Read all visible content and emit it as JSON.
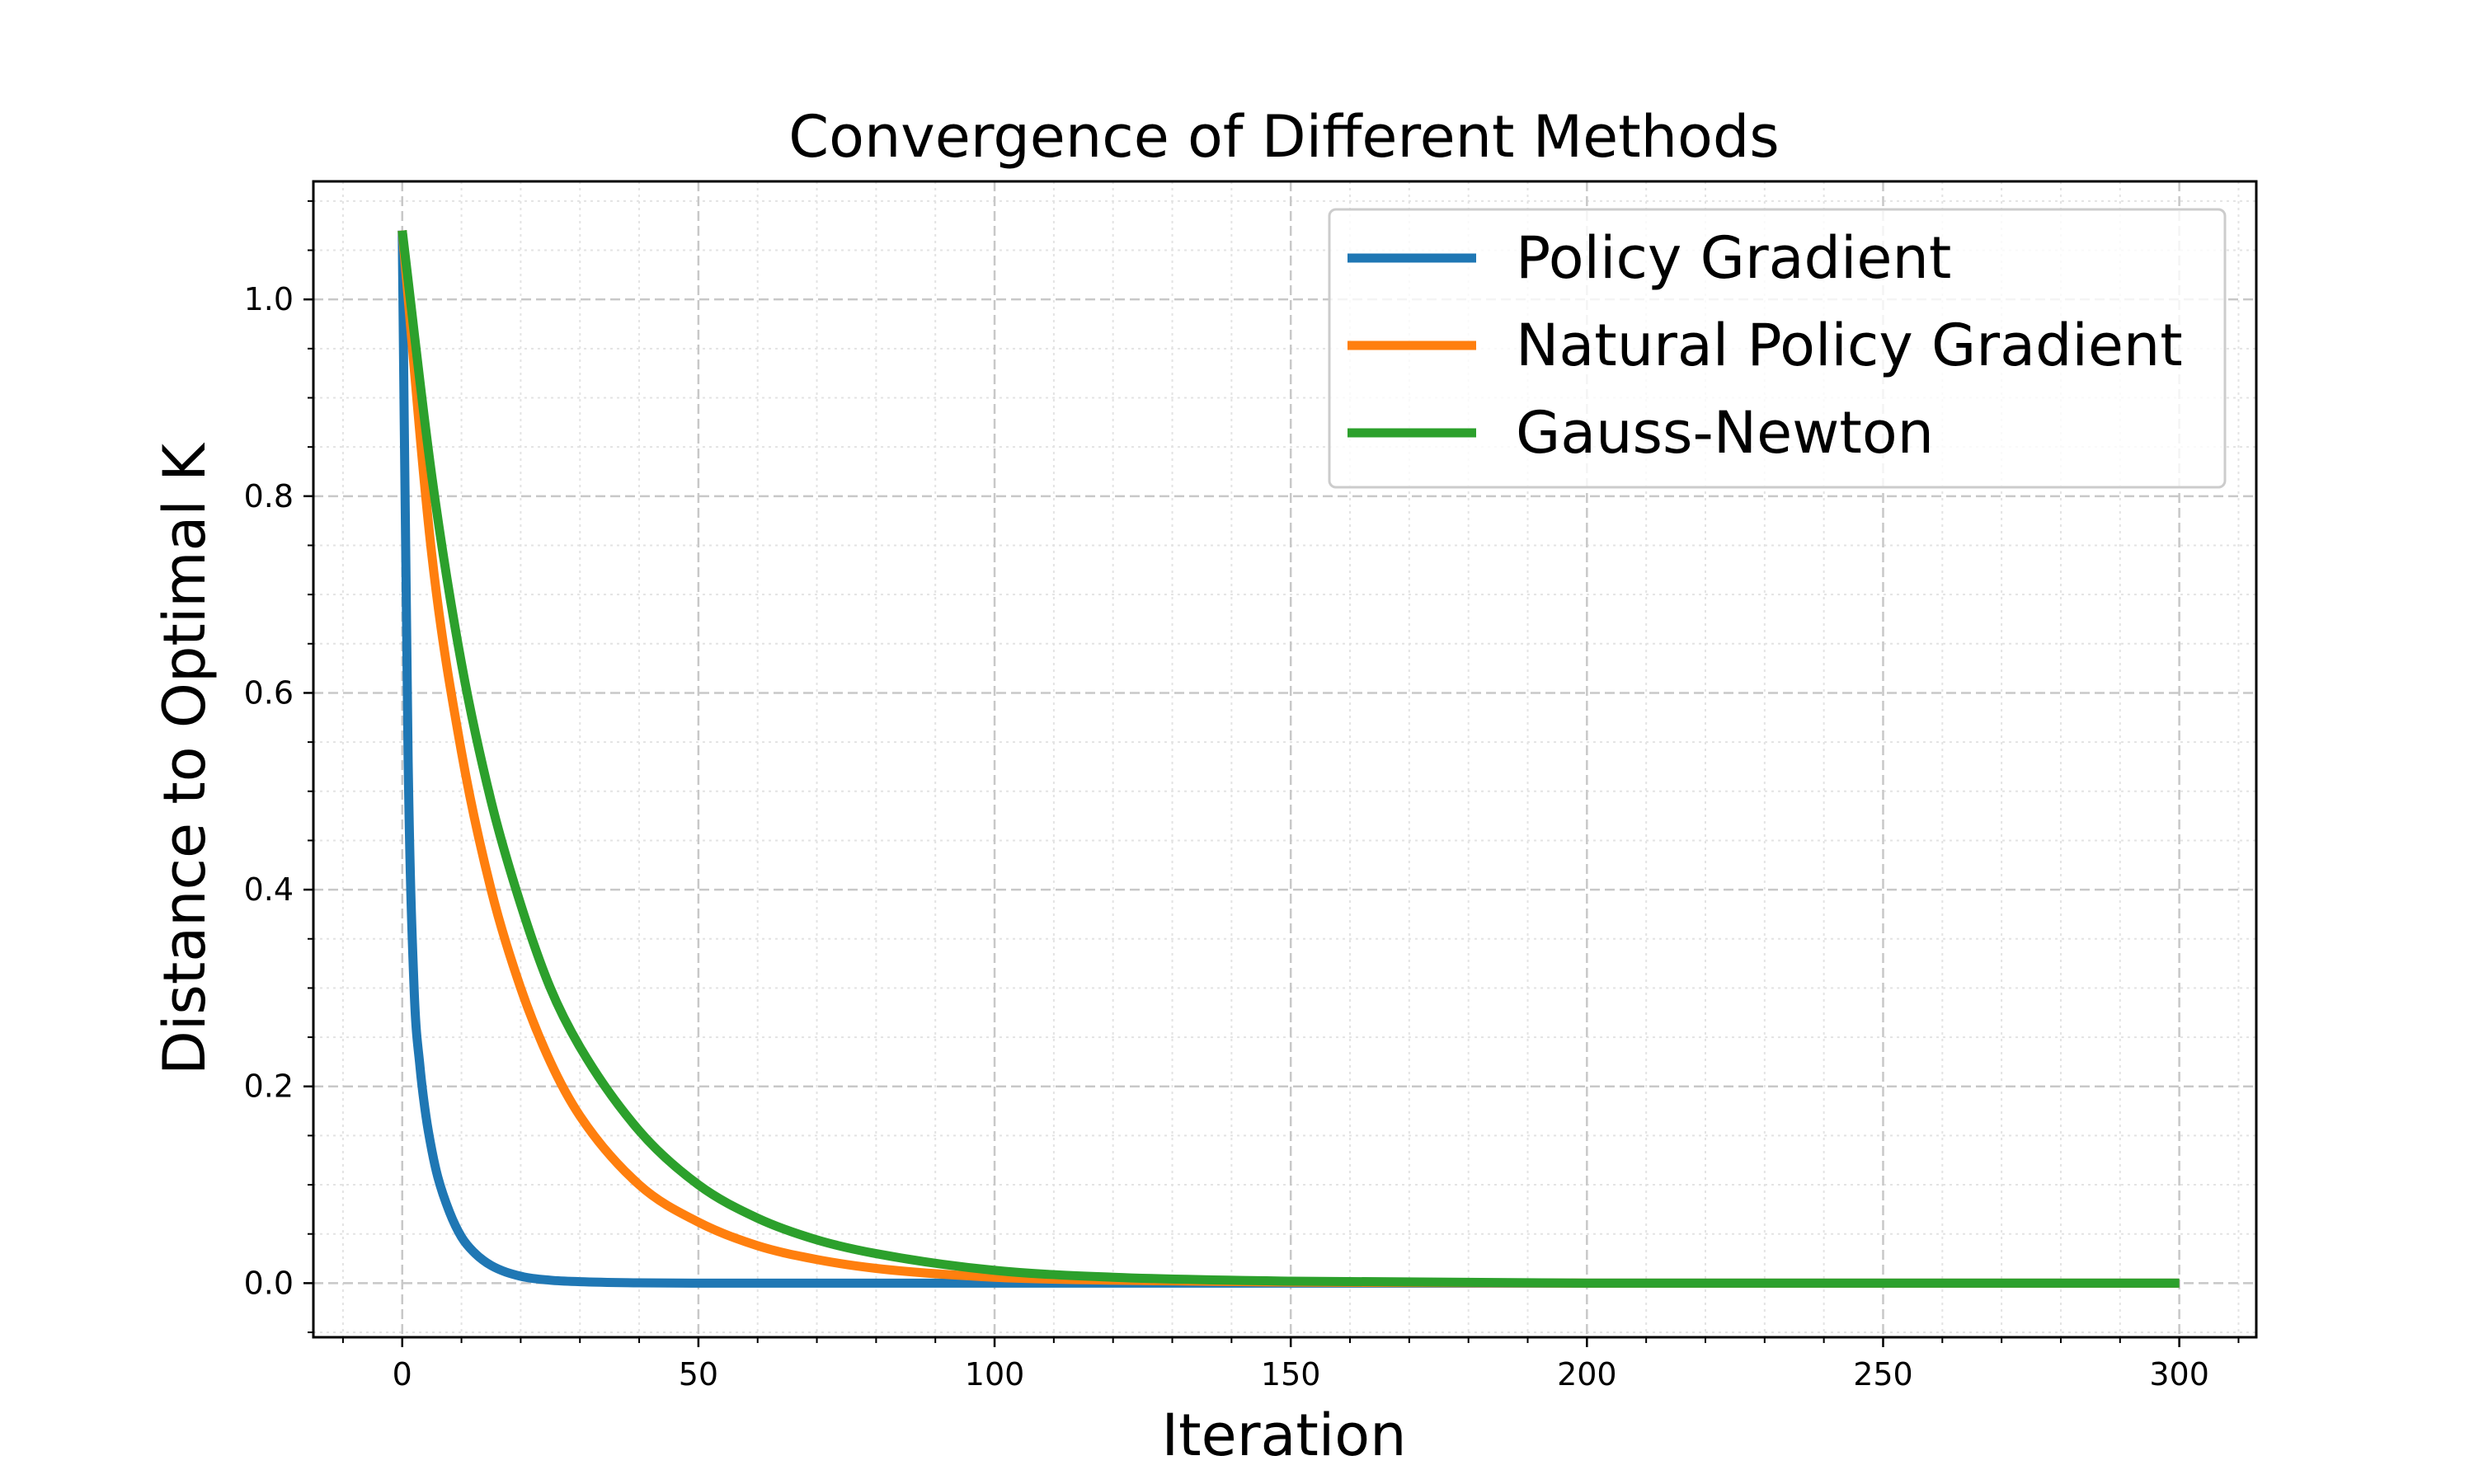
{
  "chart_data": {
    "type": "line",
    "title": "Convergence of Different Methods",
    "xlabel": "Iteration",
    "ylabel": "Distance to Optimal K",
    "xlim": [
      -15,
      313
    ],
    "ylim": [
      -0.055,
      1.12
    ],
    "xticks": [
      0,
      50,
      100,
      150,
      200,
      250,
      300
    ],
    "xtick_labels": [
      "0",
      "50",
      "100",
      "150",
      "200",
      "250",
      "300"
    ],
    "yticks": [
      0.0,
      0.2,
      0.4,
      0.6,
      0.8,
      1.0
    ],
    "ytick_labels": [
      "0.0",
      "0.2",
      "0.4",
      "0.6",
      "0.8",
      "1.0"
    ],
    "grid": true,
    "minor_grid": true,
    "legend_position": "top-right",
    "series": [
      {
        "name": "Policy Gradient",
        "color": "#1f77b4",
        "x": [
          0,
          1,
          2,
          3,
          4,
          5,
          6,
          8,
          10,
          12,
          15,
          20,
          25,
          30,
          40,
          50,
          100,
          150,
          200,
          250,
          300
        ],
        "y": [
          1.07,
          0.53,
          0.3,
          0.22,
          0.17,
          0.135,
          0.108,
          0.072,
          0.047,
          0.032,
          0.018,
          0.007,
          0.003,
          0.0015,
          0.0003,
          0.0,
          0.0,
          0.0,
          0.0,
          0.0,
          0.0
        ]
      },
      {
        "name": "Natural Policy Gradient",
        "color": "#ff7f0e",
        "x": [
          0,
          5,
          10,
          15,
          20,
          25,
          30,
          40,
          50,
          60,
          70,
          80,
          100,
          120,
          150,
          200,
          250,
          300
        ],
        "y": [
          1.07,
          0.74,
          0.54,
          0.4,
          0.3,
          0.225,
          0.17,
          0.1,
          0.062,
          0.038,
          0.024,
          0.015,
          0.006,
          0.003,
          0.001,
          0.0,
          0.0,
          0.0
        ]
      },
      {
        "name": "Gauss-Newton",
        "color": "#2ca02c",
        "x": [
          0,
          5,
          10,
          15,
          20,
          25,
          30,
          40,
          50,
          60,
          70,
          80,
          100,
          120,
          150,
          200,
          250,
          300
        ],
        "y": [
          1.07,
          0.82,
          0.63,
          0.49,
          0.385,
          0.3,
          0.24,
          0.155,
          0.1,
          0.066,
          0.044,
          0.03,
          0.013,
          0.006,
          0.002,
          0.0,
          0.0,
          0.0
        ]
      }
    ]
  }
}
